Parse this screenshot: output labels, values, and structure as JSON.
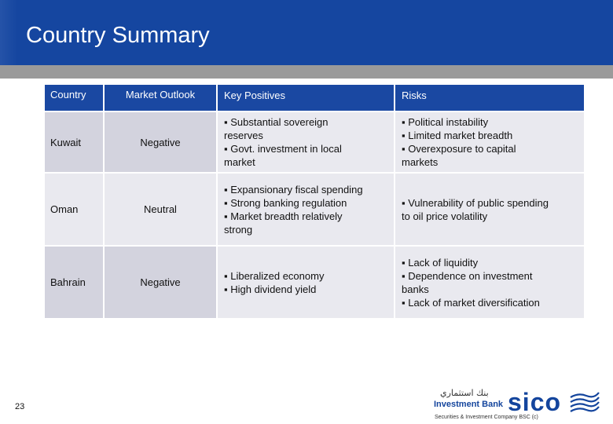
{
  "slide": {
    "title": "Country Summary",
    "page_number": "23"
  },
  "table": {
    "headers": [
      "Country",
      "Market  Outlook",
      "Key Positives",
      "Risks"
    ],
    "rows": [
      {
        "country": "Kuwait",
        "outlook": "Negative",
        "positives": [
          "▪ Substantial sovereign",
          "reserves",
          "▪ Govt. investment in local",
          "market"
        ],
        "risks": [
          "▪ Political instability",
          "▪ Limited market breadth",
          "▪ Overexposure to capital",
          "markets"
        ]
      },
      {
        "country": "Oman",
        "outlook": "Neutral",
        "positives": [
          "▪ Expansionary fiscal spending",
          "▪ Strong banking regulation",
          "▪ Market breadth relatively",
          "strong"
        ],
        "risks": [
          "▪ Vulnerability of public spending",
          "to oil price volatility"
        ]
      },
      {
        "country": "Bahrain",
        "outlook": "Negative",
        "positives": [
          "▪ Liberalized economy",
          "▪ High dividend yield"
        ],
        "risks": [
          "▪ Lack of liquidity",
          "▪ Dependence on investment",
          "banks",
          "▪ Lack of market diversification"
        ]
      }
    ]
  },
  "logo": {
    "arabic": "بنك استثماري",
    "line1": "Investment Bank",
    "brand": "sico",
    "tagline": "Securities & Investment Company BSC (c)",
    "icon": "sico-wave-mark"
  },
  "colors": {
    "header_blue": "#1546a0",
    "rule_gray": "#9a9a9a",
    "cell_lavender": "#d3d3de",
    "cell_light": "#e9e9ef"
  }
}
